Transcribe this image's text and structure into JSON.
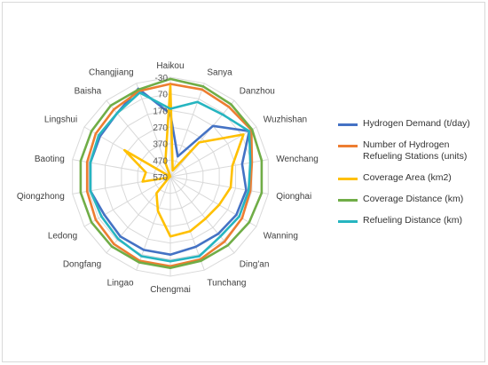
{
  "chart_data": {
    "type": "radar",
    "title": "",
    "categories": [
      "Haikou",
      "Sanya",
      "Danzhou",
      "Wuzhishan",
      "Wenchang",
      "Qionghai",
      "Wanning",
      "Ding'an",
      "Tunchang",
      "Chengmai",
      "Lingao",
      "Dongfang",
      "Ledong",
      "Qiongzhong",
      "Baoting",
      "Lingshui",
      "Baisha",
      "Changjiang"
    ],
    "radial_ticks": [
      -30,
      70,
      170,
      270,
      370,
      470,
      570
    ],
    "radial_range": [
      -30,
      570
    ],
    "radial_axis": "reversed",
    "grid": true,
    "legend_position": "right",
    "series": [
      {
        "name": "Hydrogen Demand (t/day)",
        "color": "#4472C4",
        "values": [
          190,
          440,
          170,
          20,
          130,
          105,
          110,
          120,
          120,
          100,
          100,
          100,
          110,
          80,
          80,
          80,
          70,
          5
        ]
      },
      {
        "name": "Number of Hydrogen Refueling Stations (units)",
        "color": "#ED7D31",
        "values": [
          10,
          10,
          20,
          5,
          70,
          80,
          70,
          60,
          40,
          30,
          30,
          40,
          50,
          60,
          60,
          50,
          40,
          20
        ]
      },
      {
        "name": "Coverage Area (km2)",
        "color": "#FFC000",
        "values": [
          20,
          530,
          300,
          60,
          190,
          200,
          230,
          240,
          220,
          210,
          350,
          440,
          560,
          400,
          420,
          250,
          570,
          480
        ]
      },
      {
        "name": "Coverage Distance (km)",
        "color": "#70AD47",
        "values": [
          -20,
          -10,
          0,
          0,
          10,
          10,
          20,
          30,
          30,
          20,
          20,
          20,
          20,
          20,
          20,
          20,
          10,
          10
        ]
      },
      {
        "name": "Refueling Distance (km)",
        "color": "#26B5C0",
        "values": [
          160,
          90,
          80,
          20,
          80,
          90,
          90,
          100,
          60,
          60,
          60,
          80,
          90,
          80,
          80,
          70,
          70,
          30
        ]
      }
    ]
  }
}
